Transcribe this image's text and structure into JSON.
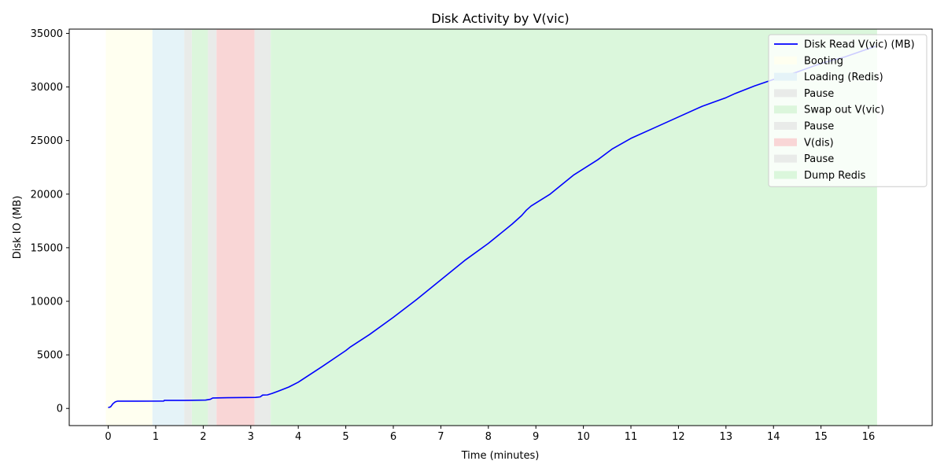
{
  "chart_data": {
    "type": "line",
    "title": "Disk Activity by V(vic)",
    "xlabel": "Time (minutes)",
    "ylabel": "Disk IO (MB)",
    "xlim": [
      -0.82,
      17.34
    ],
    "ylim": [
      -1600,
      35400
    ],
    "xticks": [
      0,
      1,
      2,
      3,
      4,
      5,
      6,
      7,
      8,
      9,
      10,
      11,
      12,
      13,
      14,
      15,
      16
    ],
    "yticks": [
      0,
      5000,
      10000,
      15000,
      20000,
      25000,
      30000,
      35000
    ],
    "grid": false,
    "legend_position": "top-right",
    "series": [
      {
        "name": "Disk Read V(vic) (MB)",
        "color": "#0000ff",
        "points": [
          [
            0,
            80
          ],
          [
            0.05,
            150
          ],
          [
            0.1,
            450
          ],
          [
            0.15,
            620
          ],
          [
            0.2,
            680
          ],
          [
            0.6,
            680
          ],
          [
            1.17,
            690
          ],
          [
            1.18,
            760
          ],
          [
            1.6,
            760
          ],
          [
            2.05,
            780
          ],
          [
            2.15,
            850
          ],
          [
            2.2,
            980
          ],
          [
            2.5,
            1000
          ],
          [
            3.1,
            1030
          ],
          [
            3.2,
            1080
          ],
          [
            3.25,
            1250
          ],
          [
            3.35,
            1260
          ],
          [
            3.45,
            1400
          ],
          [
            3.6,
            1650
          ],
          [
            3.8,
            2000
          ],
          [
            4.0,
            2450
          ],
          [
            4.5,
            3900
          ],
          [
            5.0,
            5400
          ],
          [
            5.1,
            5750
          ],
          [
            5.5,
            6900
          ],
          [
            6.0,
            8500
          ],
          [
            6.5,
            10200
          ],
          [
            7.0,
            12000
          ],
          [
            7.5,
            13800
          ],
          [
            8.0,
            15400
          ],
          [
            8.5,
            17200
          ],
          [
            8.7,
            18000
          ],
          [
            8.8,
            18500
          ],
          [
            8.9,
            18900
          ],
          [
            9.3,
            20000
          ],
          [
            9.8,
            21800
          ],
          [
            10.3,
            23200
          ],
          [
            10.6,
            24200
          ],
          [
            11.0,
            25200
          ],
          [
            11.5,
            26200
          ],
          [
            12.0,
            27200
          ],
          [
            12.5,
            28200
          ],
          [
            13.0,
            29000
          ],
          [
            13.2,
            29400
          ],
          [
            13.6,
            30100
          ],
          [
            14.0,
            30700
          ],
          [
            14.5,
            31400
          ],
          [
            15.0,
            32200
          ],
          [
            15.5,
            32800
          ],
          [
            16.15,
            33800
          ]
        ]
      }
    ],
    "phases": [
      {
        "name": "Booting",
        "start": -0.05,
        "end": 0.93,
        "color": "#fffff0"
      },
      {
        "name": "Loading (Redis)",
        "start": 0.93,
        "end": 1.6,
        "color": "#e5f3f8"
      },
      {
        "name": "Pause",
        "start": 1.6,
        "end": 1.76,
        "color": "#e9ebe9"
      },
      {
        "name": "Swap out V(vic)",
        "start": 1.76,
        "end": 2.1,
        "color": "#dcf6dc"
      },
      {
        "name": "Pause",
        "start": 2.1,
        "end": 2.28,
        "color": "#e9ebe9"
      },
      {
        "name": "V(dis)",
        "start": 2.28,
        "end": 3.08,
        "color": "#f9d6d6"
      },
      {
        "name": "Pause",
        "start": 3.08,
        "end": 3.42,
        "color": "#e9ebe9"
      },
      {
        "name": "Dump Redis",
        "start": 3.42,
        "end": 16.18,
        "color": "#dbf7dc"
      }
    ]
  }
}
